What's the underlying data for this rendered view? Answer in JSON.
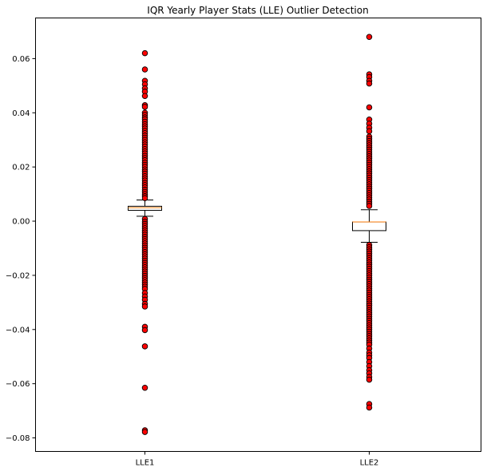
{
  "chart_data": {
    "type": "box",
    "title": "IQR Yearly Player Stats (LLE) Outlier Detection",
    "xlabel": "",
    "ylabel": "",
    "ylim": [
      -0.085,
      0.075
    ],
    "yticks": [
      -0.08,
      -0.06,
      -0.04,
      -0.02,
      0.0,
      0.02,
      0.04,
      0.06
    ],
    "ytick_labels": [
      "−0.08",
      "−0.06",
      "−0.04",
      "−0.02",
      "0.00",
      "0.02",
      "0.04",
      "0.06"
    ],
    "grid": false,
    "outlier_color": "#ff0000",
    "median_color": "#ff7f0e",
    "series": [
      {
        "name": "LLE1",
        "q1": 0.004,
        "median": 0.005,
        "q3": 0.0055,
        "whisker_low": 0.0018,
        "whisker_high": 0.0078,
        "outliers_high": [
          0.062,
          0.056,
          0.0518,
          0.0505,
          0.049,
          0.0478,
          0.0462,
          0.0428,
          0.0422,
          0.04,
          0.0392,
          0.0383,
          0.0376,
          0.0367,
          0.0358,
          0.035,
          0.0342,
          0.0333,
          0.0325,
          0.0316,
          0.0308,
          0.03,
          0.0291,
          0.0283,
          0.0275,
          0.0266,
          0.0258,
          0.025,
          0.0241,
          0.0233,
          0.0225,
          0.0216,
          0.0208,
          0.02,
          0.0191,
          0.0183,
          0.0175,
          0.0166,
          0.0158,
          0.015,
          0.0141,
          0.0133,
          0.0125,
          0.0116,
          0.0108,
          0.01,
          0.0092,
          0.0085
        ],
        "outliers_low": [
          0.0008,
          -0.0002,
          -0.001,
          -0.0018,
          -0.0026,
          -0.0034,
          -0.0042,
          -0.005,
          -0.0058,
          -0.0066,
          -0.0074,
          -0.0082,
          -0.009,
          -0.0098,
          -0.0106,
          -0.0114,
          -0.0122,
          -0.013,
          -0.0138,
          -0.0146,
          -0.0154,
          -0.0162,
          -0.017,
          -0.0178,
          -0.0186,
          -0.0194,
          -0.0202,
          -0.021,
          -0.0218,
          -0.0226,
          -0.0234,
          -0.0242,
          -0.025,
          -0.0265,
          -0.0278,
          -0.029,
          -0.0305,
          -0.0315,
          -0.039,
          -0.0402,
          -0.0462,
          -0.0615,
          -0.0772,
          -0.0778
        ]
      },
      {
        "name": "LLE2",
        "q1": -0.0035,
        "median": -0.0003,
        "q3": -0.0003,
        "whisker_low": -0.0078,
        "whisker_high": 0.0042,
        "outliers_high": [
          0.068,
          0.0542,
          0.0532,
          0.0518,
          0.0508,
          0.042,
          0.0375,
          0.036,
          0.0345,
          0.0332,
          0.0312,
          0.0304,
          0.0296,
          0.0288,
          0.028,
          0.0272,
          0.0264,
          0.0256,
          0.0248,
          0.024,
          0.0232,
          0.0224,
          0.0216,
          0.0208,
          0.02,
          0.0192,
          0.0184,
          0.0176,
          0.0168,
          0.016,
          0.0152,
          0.0144,
          0.0136,
          0.0128,
          0.012,
          0.0112,
          0.0104,
          0.0096,
          0.0088,
          0.008,
          0.0072,
          0.0064,
          0.0056
        ],
        "outliers_low": [
          -0.0088,
          -0.0096,
          -0.0104,
          -0.0112,
          -0.012,
          -0.0128,
          -0.0136,
          -0.0144,
          -0.0152,
          -0.016,
          -0.0168,
          -0.0176,
          -0.0184,
          -0.0192,
          -0.02,
          -0.0208,
          -0.0216,
          -0.0224,
          -0.0232,
          -0.024,
          -0.0248,
          -0.0256,
          -0.0264,
          -0.0272,
          -0.028,
          -0.0288,
          -0.0296,
          -0.0304,
          -0.0312,
          -0.032,
          -0.0328,
          -0.0336,
          -0.0344,
          -0.0352,
          -0.036,
          -0.0368,
          -0.0376,
          -0.0384,
          -0.0392,
          -0.04,
          -0.0408,
          -0.0416,
          -0.0424,
          -0.0432,
          -0.044,
          -0.0448,
          -0.0456,
          -0.047,
          -0.0485,
          -0.0495,
          -0.0505,
          -0.052,
          -0.0535,
          -0.055,
          -0.0562,
          -0.0575,
          -0.0585,
          -0.0675,
          -0.0688
        ]
      }
    ]
  }
}
